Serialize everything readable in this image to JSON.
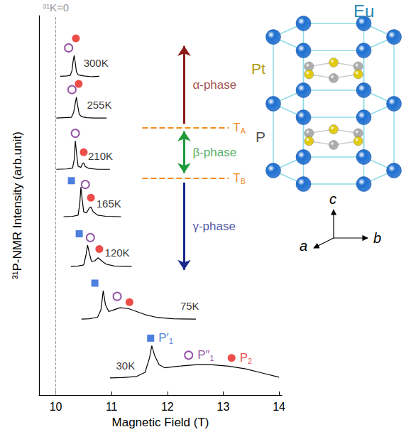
{
  "chart_data": {
    "type": "line",
    "x_label": "Magnetic Field (T)",
    "y_label": "³¹P-NMR Intensity (arb.unit)",
    "xlim": [
      9.7,
      14.05
    ],
    "xticks": [
      10,
      11,
      12,
      13,
      14
    ],
    "ylim": [
      0,
      100
    ],
    "yticks": [],
    "tick_labels": "x",
    "grid": false,
    "reference_line": {
      "x": 10,
      "label": "³¹K=0",
      "color": "#999999",
      "line_style": "dashed"
    },
    "series": [
      {
        "name": "300K",
        "color": "#000000",
        "label_pos": [
          10.72,
          87.5
        ],
        "x": [
          10.08,
          10.2,
          10.26,
          10.29,
          10.31,
          10.33,
          10.35,
          10.37,
          10.4,
          10.5,
          10.65,
          10.78
        ],
        "values": [
          84.0,
          84.1,
          84.3,
          85.5,
          88.0,
          89.5,
          87.5,
          85.2,
          84.4,
          84.1,
          83.9,
          84.0
        ]
      },
      {
        "name": "255K",
        "color": "#000000",
        "label_pos": [
          10.78,
          76.5
        ],
        "x": [
          10.01,
          10.15,
          10.28,
          10.32,
          10.35,
          10.37,
          10.39,
          10.42,
          10.46,
          10.55,
          10.7,
          10.91
        ],
        "values": [
          73.0,
          73.1,
          73.2,
          74.5,
          77.0,
          78.5,
          76.5,
          74.0,
          73.4,
          73.1,
          73.0,
          73.0
        ]
      },
      {
        "name": "210K",
        "color": "#000000",
        "label_pos": [
          10.8,
          63.0
        ],
        "x": [
          10.01,
          10.2,
          10.3,
          10.33,
          10.35,
          10.37,
          10.4,
          10.45,
          10.48,
          10.5,
          10.53,
          10.6,
          10.75,
          10.97
        ],
        "values": [
          59.5,
          59.6,
          59.8,
          62.0,
          67.0,
          64.0,
          60.3,
          60.0,
          61.0,
          61.2,
          60.2,
          59.7,
          59.5,
          59.5
        ]
      },
      {
        "name": "165K",
        "color": "#000000",
        "label_pos": [
          10.95,
          50.5
        ],
        "x": [
          10.14,
          10.3,
          10.4,
          10.43,
          10.45,
          10.47,
          10.5,
          10.55,
          10.6,
          10.63,
          10.67,
          10.75,
          10.9,
          11.17
        ],
        "values": [
          47.0,
          47.1,
          47.4,
          50.5,
          54.8,
          52.0,
          48.3,
          48.0,
          49.3,
          49.6,
          48.3,
          47.4,
          47.1,
          47.0
        ]
      },
      {
        "name": "120K",
        "color": "#000000",
        "label_pos": [
          11.1,
          37.5
        ],
        "x": [
          10.27,
          10.4,
          10.5,
          10.54,
          10.57,
          10.6,
          10.64,
          10.7,
          10.76,
          10.82,
          10.9,
          11.05,
          11.36
        ],
        "values": [
          33.9,
          34.0,
          34.3,
          36.8,
          39.5,
          37.5,
          35.2,
          35.4,
          36.2,
          35.4,
          34.5,
          34.0,
          33.9
        ]
      },
      {
        "name": "75K",
        "color": "#000000",
        "label_pos": [
          12.4,
          23.5
        ],
        "x": [
          10.46,
          10.6,
          10.75,
          10.81,
          10.85,
          10.89,
          10.95,
          11.05,
          11.15,
          11.3,
          11.45,
          11.6,
          11.8,
          12.1,
          12.51
        ],
        "values": [
          20.0,
          20.1,
          20.5,
          22.5,
          27.5,
          23.8,
          22.0,
          22.5,
          23.0,
          22.8,
          22.0,
          21.2,
          20.5,
          20.1,
          20.0
        ]
      },
      {
        "name": "30K",
        "color": "#000000",
        "label_pos": [
          11.25,
          7.8
        ],
        "x": [
          10.97,
          11.2,
          11.45,
          11.6,
          11.68,
          11.72,
          11.77,
          11.85,
          11.95,
          12.2,
          12.5,
          12.8,
          13.1,
          13.4,
          13.7,
          14.0
        ],
        "values": [
          4.5,
          4.6,
          4.9,
          6.0,
          9.8,
          13.0,
          10.5,
          8.0,
          7.2,
          7.6,
          8.0,
          8.0,
          7.6,
          6.9,
          5.8,
          4.7
        ]
      }
    ],
    "markers": [
      {
        "name": {
          "text": "P′",
          "sub": "1"
        },
        "marker": "square",
        "color": "#1f5fd6",
        "x": [
          null,
          null,
          null,
          10.28,
          10.42,
          10.7,
          11.7
        ],
        "values": [
          null,
          null,
          null,
          56.5,
          42.5,
          29.5,
          15.0
        ]
      },
      {
        "name": {
          "text": "P″",
          "sub": "1"
        },
        "marker": "open_circle",
        "color": "#7b2d8e",
        "x": [
          10.23,
          10.29,
          10.35,
          10.53,
          10.62,
          11.1,
          12.38
        ],
        "values": [
          91.5,
          80.5,
          69.0,
          55.5,
          41.5,
          26.0,
          10.5
        ]
      },
      {
        "name": {
          "text": "P",
          "sub": "2"
        },
        "marker": "circle",
        "color": "#e8201a",
        "x": [
          10.36,
          10.41,
          10.5,
          10.63,
          10.78,
          11.32,
          13.15
        ],
        "values": [
          94.0,
          82.0,
          64.0,
          52.0,
          38.5,
          24.5,
          9.8
        ]
      }
    ],
    "phases": [
      {
        "label": "α-phase",
        "color": "#8b1a1a",
        "marker": "arrow",
        "x": 12.3,
        "y": [
          71.5,
          92.0
        ]
      },
      {
        "label": "β-phase",
        "color": "#1f9a3a",
        "marker": "double_arrow",
        "x": 12.3,
        "y": [
          69.5,
          58.5
        ]
      },
      {
        "label": "γ-phase",
        "color": "#1a2a8a",
        "marker": "arrow",
        "x": 12.3,
        "y": [
          56.0,
          33.0
        ]
      }
    ],
    "boundaries": [
      {
        "label": {
          "text": "T",
          "sub": "A"
        },
        "color": "#f08c1e",
        "line_style": "dashed",
        "x": [
          11.55,
          13.1
        ],
        "y": 70.5
      },
      {
        "label": {
          "text": "T",
          "sub": "B"
        },
        "color": "#f08c1e",
        "line_style": "dashed",
        "x": [
          11.55,
          13.1
        ],
        "y": 57.2
      }
    ],
    "inset": {
      "atoms": [
        {
          "label": "Eu",
          "color": "#1e6fd0"
        },
        {
          "label": "Pt",
          "color": "#e0c800"
        },
        {
          "label": "P",
          "color": "#a8a8a8"
        }
      ],
      "axes": [
        "a",
        "b",
        "c"
      ]
    }
  }
}
